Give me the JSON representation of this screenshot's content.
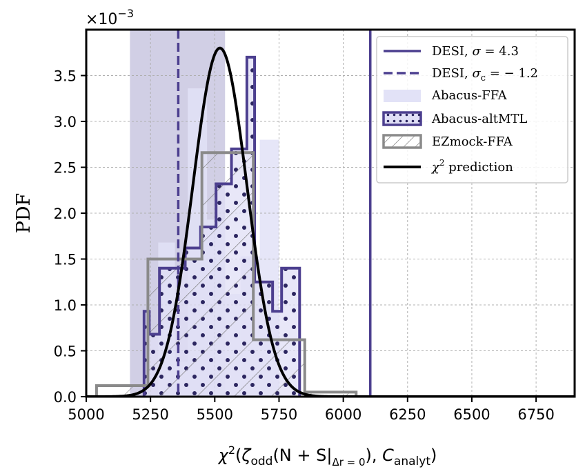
{
  "chart_data": {
    "type": "histogram",
    "xlabel": "χ²(ζodd(N + S|Δr=0), Canalyt)",
    "xlabel_parts": {
      "chi": "χ",
      "sup": "2",
      "open": "(",
      "zeta": "ζ",
      "odd": "odd",
      "np": "(N + S|",
      "dr": "Δr = 0",
      "close1": "), ",
      "c": "C",
      "analyt": "analyt",
      "close2": ")"
    },
    "ylabel": "PDF",
    "y_scale": "×10⁻³",
    "y_scale_parts": {
      "base": "×10",
      "exp": "−3"
    },
    "xlim": [
      5000,
      6900
    ],
    "ylim": [
      0,
      0.004
    ],
    "xticks": [
      5000,
      5250,
      5500,
      5750,
      6000,
      6250,
      6500,
      6750
    ],
    "yticks": [
      0.0,
      0.5,
      1.0,
      1.5,
      2.0,
      2.5,
      3.0,
      3.5
    ],
    "ytick_labels": [
      "0.0",
      "0.5",
      "1.0",
      "1.5",
      "2.0",
      "2.5",
      "3.0",
      "3.5"
    ],
    "grid": true,
    "legend_position": "upper right",
    "desi_band": {
      "x0": 5170,
      "x1": 5540,
      "color": "#9a94c6"
    },
    "series": [
      {
        "name": "Abacus-FFA",
        "style": "filled",
        "color": "#e2e2f7",
        "bins": [
          {
            "x0": 5280,
            "x1": 5345,
            "y": 1.68
          },
          {
            "x0": 5345,
            "x1": 5395,
            "y": 0.38
          },
          {
            "x0": 5395,
            "x1": 5470,
            "y": 3.36
          },
          {
            "x0": 5470,
            "x1": 5540,
            "y": 1.93
          },
          {
            "x0": 5540,
            "x1": 5600,
            "y": 1.12
          },
          {
            "x0": 5600,
            "x1": 5675,
            "y": 1.53
          },
          {
            "x0": 5675,
            "x1": 5750,
            "y": 2.8
          }
        ]
      },
      {
        "name": "Abacus-altMTL",
        "style": "dotted-outline",
        "color": "#4c3f8f",
        "fill": "#e0dff6",
        "edges": [
          5225,
          5245,
          5285,
          5320,
          5385,
          5445,
          5505,
          5565,
          5625,
          5655,
          5725,
          5760,
          5830
        ],
        "heights": [
          0.93,
          0.68,
          1.4,
          1.4,
          1.62,
          1.85,
          2.32,
          2.7,
          3.7,
          1.25,
          0.93,
          1.4
        ]
      },
      {
        "name": "EZmock-FFA",
        "style": "hatched-outline",
        "color": "#7a7a7a",
        "edges": [
          5040,
          5105,
          5170,
          5240,
          5345,
          5450,
          5545,
          5650,
          5745,
          5850,
          5945,
          6050
        ],
        "heights": [
          0.12,
          0.12,
          0.12,
          1.5,
          1.5,
          2.66,
          2.66,
          0.62,
          0.62,
          0.05,
          0.05
        ]
      },
      {
        "name": "χ² prediction",
        "style": "line",
        "color": "#000000",
        "curve": {
          "mu": 5520,
          "sigma": 105,
          "peak": 3.8
        }
      }
    ],
    "vlines": [
      {
        "name": "DESI, σ = 4.3",
        "x": 6105,
        "style": "solid",
        "color": "#4c3f8f"
      },
      {
        "name": "DESI, σc = −1.2",
        "x": 5358,
        "style": "dashed",
        "color": "#4c3f8f"
      }
    ],
    "legend": {
      "desi_solid": {
        "pre": "DESI, ",
        "sym": "σ",
        "post": " = 4.3"
      },
      "desi_dashed": {
        "pre": "DESI, ",
        "sym": "σ",
        "sub": "c",
        "post": " = − 1.2"
      },
      "abacus_ffa": "Abacus-FFA",
      "abacus_altmtl": "Abacus-altMTL",
      "ezmock": "EZmock-FFA",
      "chi2": {
        "sym": "χ",
        "sup": "2",
        "post": " prediction"
      }
    }
  }
}
